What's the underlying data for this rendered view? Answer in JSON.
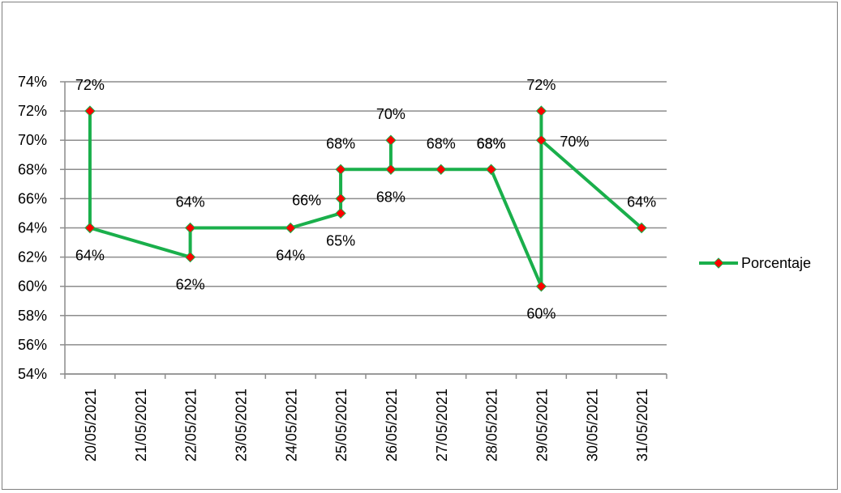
{
  "chart_data": {
    "type": "line",
    "x_categories": [
      "20/05/2021",
      "21/05/2021",
      "22/05/2021",
      "23/05/2021",
      "24/05/2021",
      "25/05/2021",
      "26/05/2021",
      "27/05/2021",
      "28/05/2021",
      "29/05/2021",
      "30/05/2021",
      "31/05/2021"
    ],
    "yticks": [
      "74%",
      "72%",
      "70%",
      "68%",
      "66%",
      "64%",
      "62%",
      "60%",
      "58%",
      "56%",
      "54%"
    ],
    "ylim": [
      54,
      74
    ],
    "ystep": 2,
    "grid": true,
    "legend_position": "right",
    "series": [
      {
        "name": "Porcentaje",
        "color": "#1aaf4b",
        "marker_color": "#ff0000",
        "marker": "diamond",
        "points": [
          {
            "x": "20/05/2021",
            "y": 72,
            "label": "72%",
            "label_pos": "above"
          },
          {
            "x": "20/05/2021",
            "y": 64,
            "label": "64%",
            "label_pos": "below"
          },
          {
            "x": "22/05/2021",
            "y": 62,
            "label": "62%",
            "label_pos": "below"
          },
          {
            "x": "22/05/2021",
            "y": 64,
            "label": "64%",
            "label_pos": "above"
          },
          {
            "x": "24/05/2021",
            "y": 64,
            "label": "64%",
            "label_pos": "below"
          },
          {
            "x": "25/05/2021",
            "y": 66,
            "label": "66%",
            "label_pos": "left"
          },
          {
            "x": "25/05/2021",
            "y": 65,
            "label": "65%",
            "label_pos": "below"
          },
          {
            "x": "25/05/2021",
            "y": 68,
            "label": "68%",
            "label_pos": "above"
          },
          {
            "x": "26/05/2021",
            "y": 68,
            "label": "68%",
            "label_pos": "below"
          },
          {
            "x": "26/05/2021",
            "y": 70,
            "label": "70%",
            "label_pos": "above"
          },
          {
            "x": "27/05/2021",
            "y": 68,
            "label": "68%",
            "label_pos": "above"
          },
          {
            "x": "28/05/2021",
            "y": 68,
            "label": "68%",
            "label_pos": "above"
          },
          {
            "x": "28/05/2021",
            "y": 68,
            "label": "68%",
            "label_pos": "above"
          },
          {
            "x": "29/05/2021",
            "y": 60,
            "label": "60%",
            "label_pos": "below"
          },
          {
            "x": "29/05/2021",
            "y": 72,
            "label": "72%",
            "label_pos": "above"
          },
          {
            "x": "29/05/2021",
            "y": 70,
            "label": "70%",
            "label_pos": "right"
          },
          {
            "x": "31/05/2021",
            "y": 64,
            "label": "64%",
            "label_pos": "above"
          }
        ],
        "path_order": [
          0,
          1,
          2,
          3,
          4,
          6,
          5,
          7,
          8,
          9,
          8,
          10,
          11,
          13,
          14,
          15,
          16
        ]
      }
    ],
    "legend": [
      "Porcentaje"
    ]
  }
}
